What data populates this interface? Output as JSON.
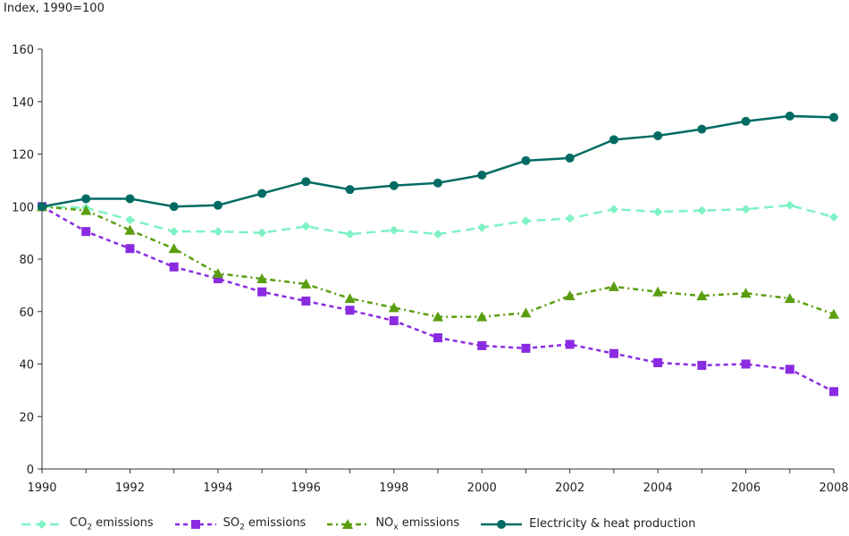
{
  "chart_data": {
    "type": "line",
    "title": "",
    "ylabel": "Index, 1990=100",
    "xlabel": "",
    "x": [
      1990,
      1991,
      1992,
      1993,
      1994,
      1995,
      1996,
      1997,
      1998,
      1999,
      2000,
      2001,
      2002,
      2003,
      2004,
      2005,
      2006,
      2007,
      2008
    ],
    "x_tick_labels": [
      "1990",
      "1992",
      "1994",
      "1996",
      "1998",
      "2000",
      "2002",
      "2004",
      "2006",
      "2008"
    ],
    "y_tick_labels": [
      "0",
      "20",
      "40",
      "60",
      "80",
      "100",
      "120",
      "140",
      "160"
    ],
    "ylim": [
      0,
      160
    ],
    "grid": false,
    "legend_position": "bottom",
    "series": [
      {
        "name": "CO2 emissions",
        "label_main": "CO",
        "label_sub": "2",
        "label_rest": " emissions",
        "color": "#7ef2c4",
        "marker": "diamond",
        "dash": "10,6",
        "values": [
          100,
          99.5,
          95,
          90.5,
          90.5,
          90,
          92.5,
          89.5,
          91,
          89.5,
          92,
          94.5,
          95.5,
          99,
          98,
          98.5,
          99,
          100.5,
          96
        ]
      },
      {
        "name": "SO2 emissions",
        "label_main": "SO",
        "label_sub": "2",
        "label_rest": " emissions",
        "color": "#8a2be2",
        "marker": "square",
        "dash": "5,4",
        "values": [
          100,
          90.5,
          84,
          77,
          72.5,
          67.5,
          64,
          60.5,
          56.5,
          50,
          47,
          46,
          47.5,
          44,
          40.5,
          39.5,
          40,
          38,
          29.5
        ]
      },
      {
        "name": "NOx emissions",
        "label_main": "NO",
        "label_sub": "x",
        "label_rest": " emissions",
        "color": "#5a9e0f",
        "marker": "triangle",
        "dash": "6,4,2,4",
        "values": [
          100,
          98.5,
          91,
          84,
          74.5,
          72.5,
          70.5,
          65,
          61.5,
          58,
          58,
          59.5,
          66,
          69.5,
          67.5,
          66,
          67,
          65,
          59
        ]
      },
      {
        "name": "Electricity & heat production",
        "label_main": "Electricity & heat production",
        "label_sub": "",
        "label_rest": "",
        "color": "#006b63",
        "marker": "circle",
        "dash": "",
        "values": [
          100,
          103,
          103,
          100,
          100.5,
          105,
          109.5,
          106.5,
          108,
          109,
          112,
          117.5,
          118.5,
          125.5,
          127,
          129.5,
          132.5,
          134.5,
          134
        ]
      }
    ]
  }
}
